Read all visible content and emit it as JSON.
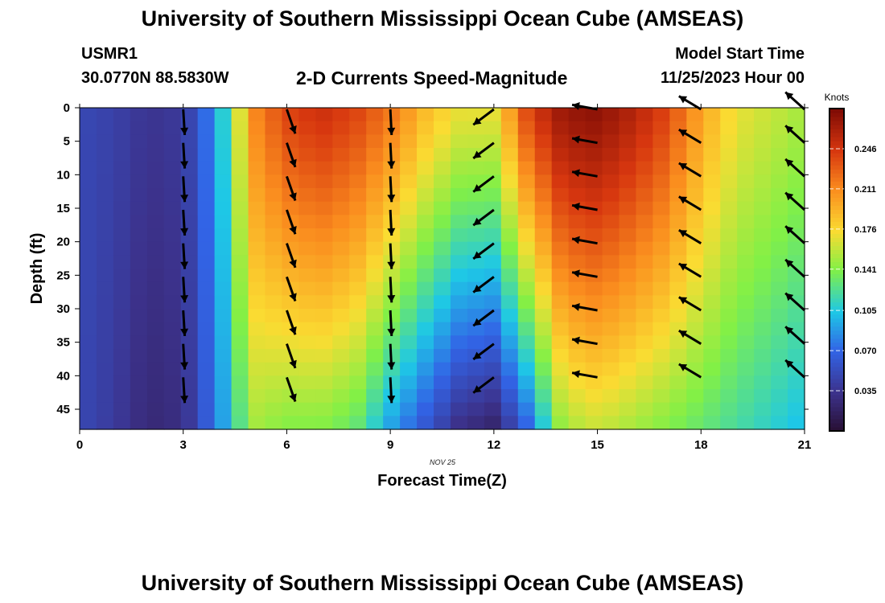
{
  "header": {
    "title": "University of Southern Mississippi Ocean Cube (AMSEAS)",
    "station": "USMR1",
    "coords": "30.0770N  88.5830W",
    "plot_name": "2-D Currents Speed-Magnitude",
    "model_start_label": "Model Start Time",
    "model_start_value": "11/25/2023 Hour 00"
  },
  "footer": {
    "title": "University of Southern Mississippi Ocean Cube (AMSEAS)"
  },
  "chart_data": {
    "type": "heatmap",
    "title": "2-D Currents Speed-Magnitude",
    "xlabel": "Forecast Time(Z)",
    "ylabel": "Depth (ft)",
    "date_label": "NOV 25",
    "xlim": [
      0,
      21
    ],
    "ylim": [
      48,
      0
    ],
    "x_ticks": [
      0,
      3,
      6,
      9,
      12,
      15,
      18,
      21
    ],
    "y_ticks": [
      0,
      5,
      10,
      15,
      20,
      25,
      30,
      35,
      40,
      45
    ],
    "colorbar": {
      "label": "Knots",
      "range": [
        0.0,
        0.281
      ],
      "ticks": [
        "0.035",
        "0.070",
        "0.105",
        "0.141",
        "0.176",
        "0.211",
        "0.246"
      ]
    },
    "speed_knots_by_hour": {
      "hours": [
        0,
        1,
        2,
        3,
        4,
        5,
        6,
        7,
        8,
        9,
        10,
        11,
        12,
        13,
        14,
        15,
        16,
        17,
        18,
        19,
        20,
        21
      ],
      "surface": [
        0.05,
        0.045,
        0.035,
        0.04,
        0.09,
        0.21,
        0.24,
        0.25,
        0.24,
        0.22,
        0.19,
        0.17,
        0.17,
        0.24,
        0.27,
        0.275,
        0.26,
        0.24,
        0.2,
        0.17,
        0.16,
        0.15
      ],
      "bottom": [
        0.05,
        0.04,
        0.025,
        0.03,
        0.08,
        0.15,
        0.14,
        0.14,
        0.13,
        0.09,
        0.06,
        0.03,
        0.02,
        0.07,
        0.15,
        0.16,
        0.15,
        0.14,
        0.13,
        0.12,
        0.11,
        0.1
      ]
    },
    "vector_field": {
      "hours": [
        3,
        6,
        9,
        12,
        15,
        18,
        21
      ],
      "depths_ft": [
        0,
        5,
        10,
        15,
        20,
        25,
        30,
        35,
        40
      ],
      "direction_note": "3Z: southward; 6Z: south-southeast; 9Z: south; 12Z: southwest; 15Z: west; 18Z: northwest; 21Z: northwest"
    }
  }
}
